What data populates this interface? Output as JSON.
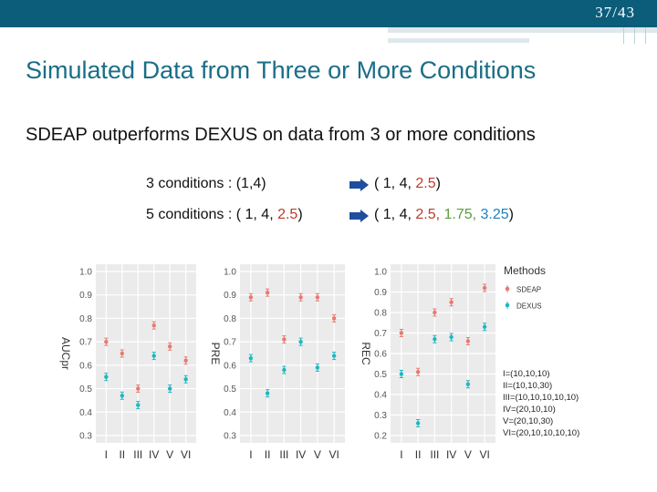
{
  "slide": {
    "number": "37",
    "total": "43",
    "title": "Simulated Data from Three or More Conditions"
  },
  "subtitle": "SDEAP outperforms DEXUS on data from 3 or more conditions",
  "conditions": {
    "row1": {
      "label": "3 conditions :  (1,4)",
      "result_prefix": "( 1, 4, ",
      "result_red": "2.5",
      "result_suffix": ")"
    },
    "row2": {
      "label_prefix": "5 conditions : ( 1, 4, ",
      "label_red": "2.5",
      "label_suffix": ")",
      "result_prefix": "( 1, 4, ",
      "result_red": "2.5,",
      "result_green": " 1.75,",
      "result_blue": " 3.25",
      "result_suffix": ")"
    }
  },
  "colors": {
    "header": "#0b5d7a",
    "title": "#1a6e87",
    "sdeap": "#e8796f",
    "dexus": "#1fb6c2",
    "panel_bg": "#ebebeb"
  },
  "chart_data": [
    {
      "type": "scatter",
      "ylabel": "AUCpr",
      "ylim": [
        0.3,
        1.0
      ],
      "yticks": [
        "1.0",
        "0.9",
        "0.8",
        "0.7",
        "0.6",
        "0.5",
        "0.4",
        "0.3"
      ],
      "categories": [
        "I",
        "II",
        "III",
        "IV",
        "V",
        "VI"
      ],
      "series": [
        {
          "name": "SDEAP",
          "values": [
            0.7,
            0.65,
            0.5,
            0.77,
            0.68,
            0.62
          ]
        },
        {
          "name": "DEXUS",
          "values": [
            0.55,
            0.47,
            0.43,
            0.64,
            0.5,
            0.54
          ]
        }
      ]
    },
    {
      "type": "scatter",
      "ylabel": "PRE",
      "ylim": [
        0.3,
        1.0
      ],
      "yticks": [
        "1.0",
        "0.9",
        "0.8",
        "0.7",
        "0.6",
        "0.5",
        "0.4",
        "0.3"
      ],
      "categories": [
        "I",
        "II",
        "III",
        "IV",
        "V",
        "VI"
      ],
      "series": [
        {
          "name": "SDEAP",
          "values": [
            0.89,
            0.91,
            0.71,
            0.89,
            0.89,
            0.8
          ]
        },
        {
          "name": "DEXUS",
          "values": [
            0.63,
            0.48,
            0.58,
            0.7,
            0.59,
            0.64
          ]
        }
      ]
    },
    {
      "type": "scatter",
      "ylabel": "REC",
      "ylim": [
        0.2,
        1.0
      ],
      "yticks": [
        "1.0",
        "0.9",
        "0.8",
        "0.7",
        "0.6",
        "0.5",
        "0.4",
        "0.3",
        "0.2"
      ],
      "categories": [
        "I",
        "II",
        "III",
        "IV",
        "V",
        "VI"
      ],
      "series": [
        {
          "name": "SDEAP",
          "values": [
            0.7,
            0.51,
            0.8,
            0.85,
            0.66,
            0.92
          ]
        },
        {
          "name": "DEXUS",
          "values": [
            0.5,
            0.26,
            0.67,
            0.68,
            0.45,
            0.73
          ]
        }
      ]
    }
  ],
  "legend": {
    "title": "Methods",
    "items": [
      "SDEAP",
      "DEXUS"
    ],
    "notes": [
      "I=(10,10,10)",
      "II=(10,10,30)",
      "III=(10,10,10,10,10)",
      "IV=(20,10,10)",
      "V=(20,10,30)",
      "VI=(20,10,10,10,10)"
    ]
  }
}
